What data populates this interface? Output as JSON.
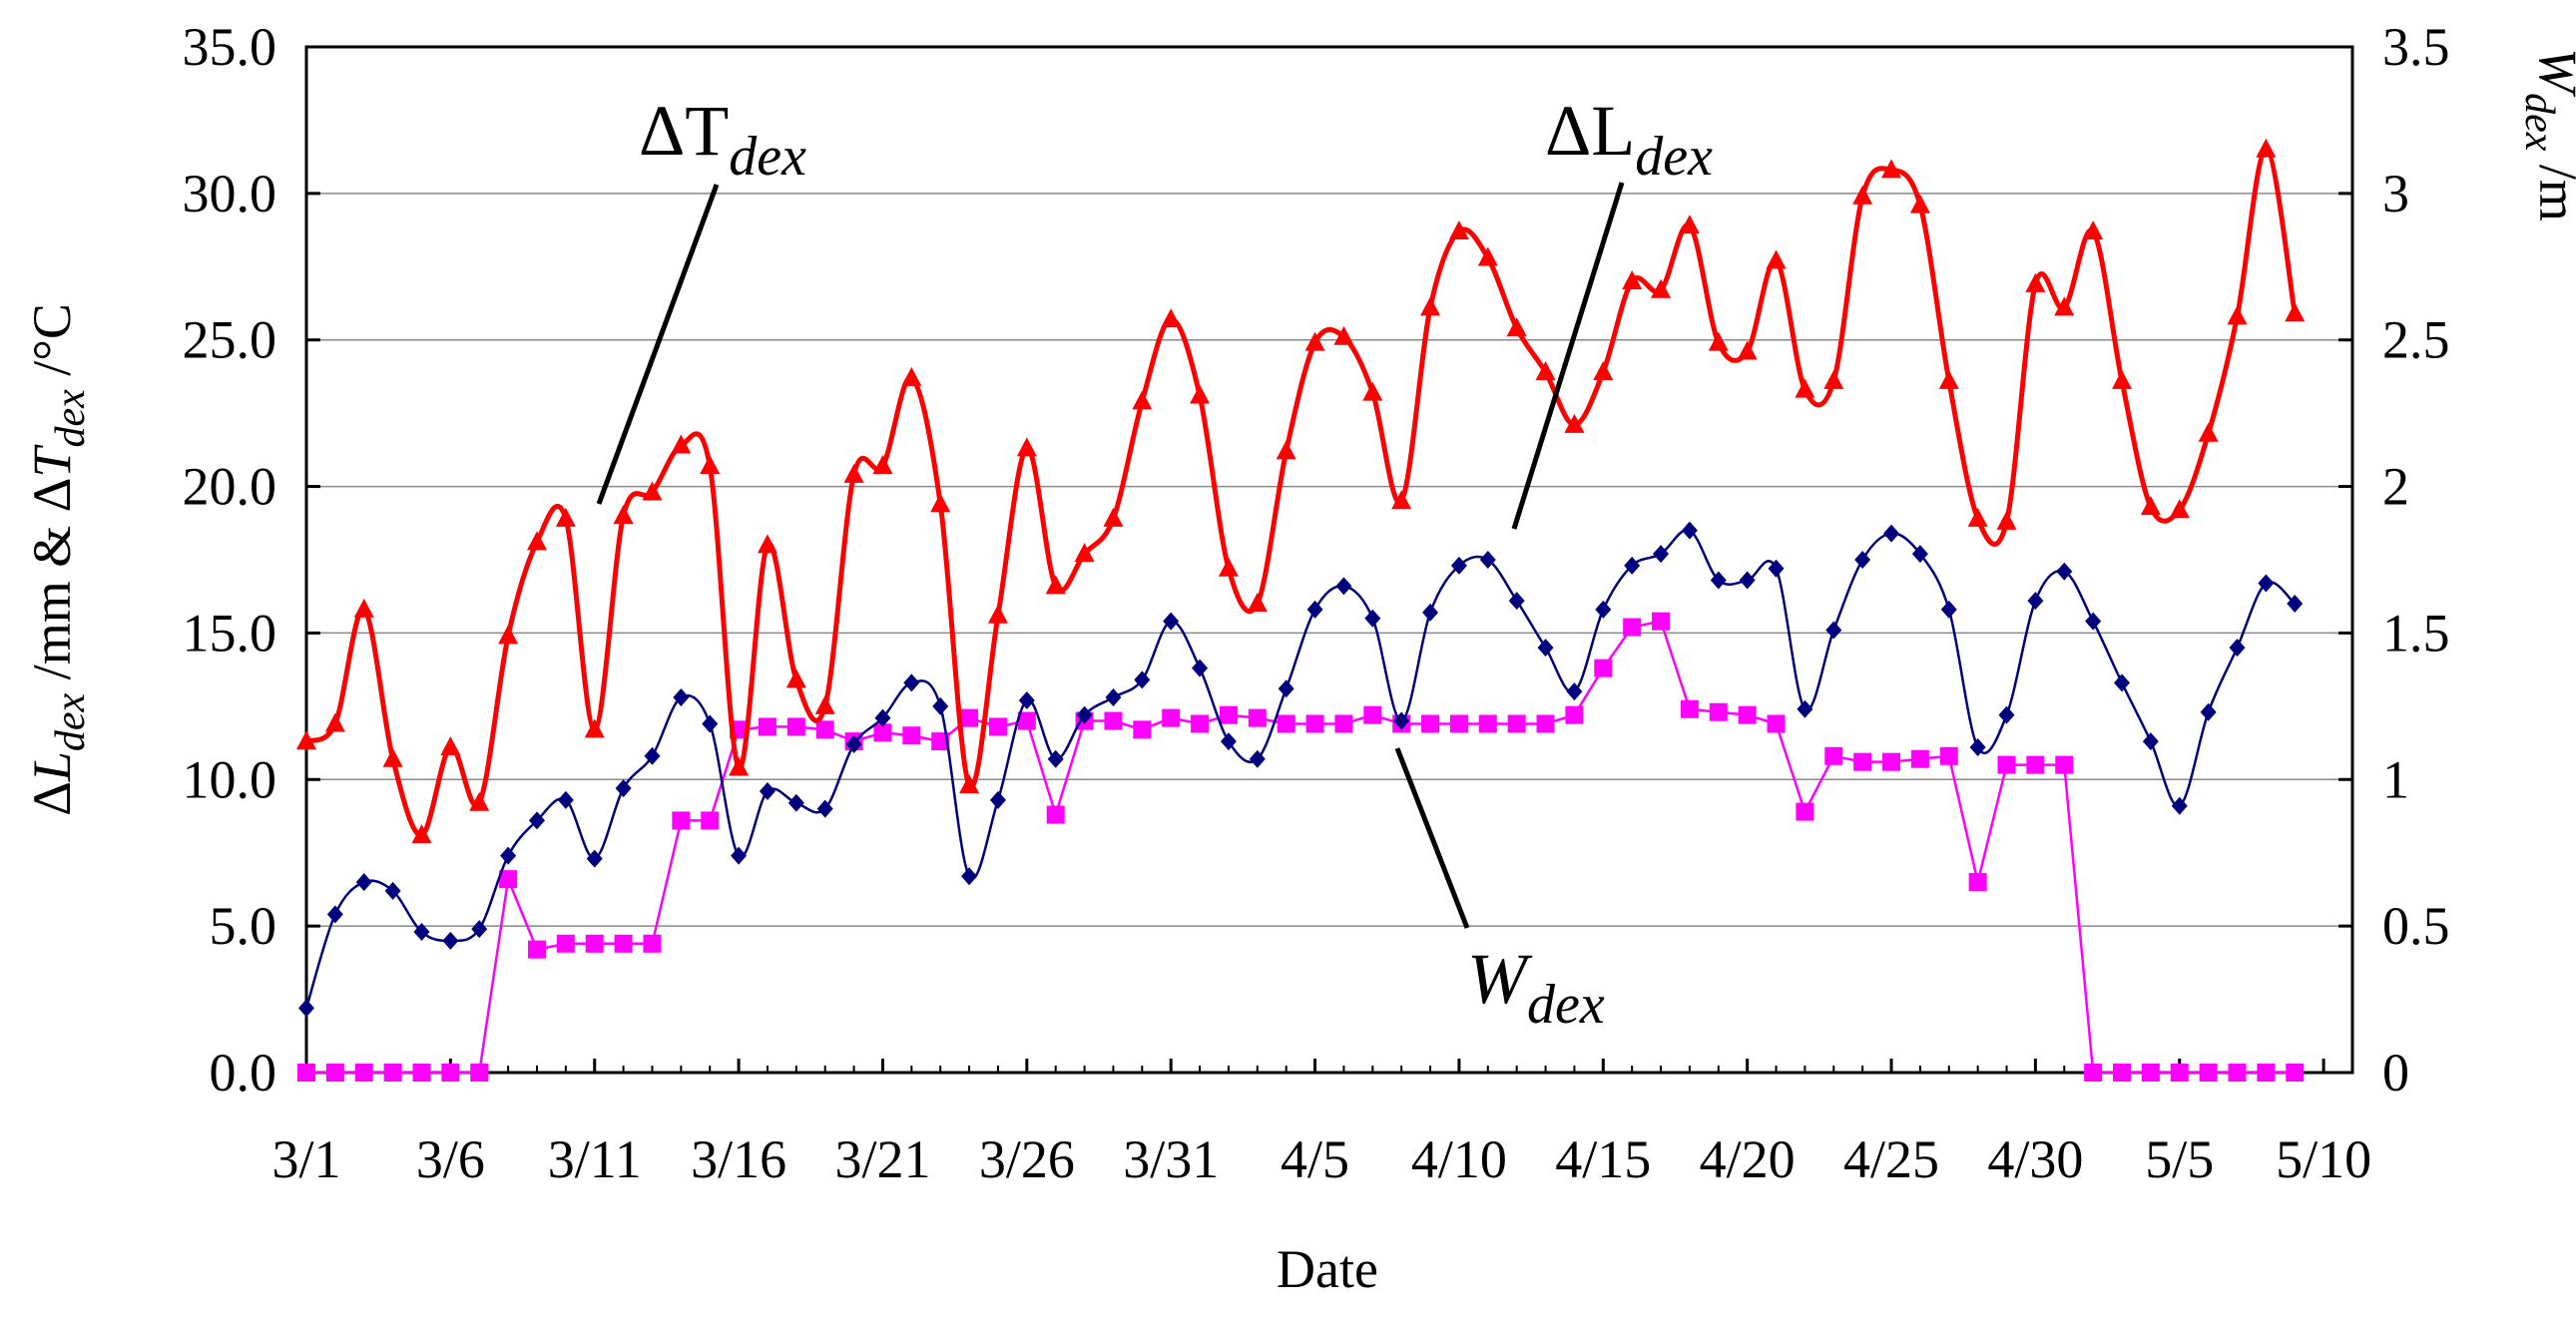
{
  "chart_data": {
    "type": "line",
    "xlabel": "Date",
    "ylabel_left": {
      "delta": "Δ",
      "L": "L",
      "L_sub": "dex",
      "unit1": " /mm & ",
      "delta2": "Δ",
      "T": "T",
      "T_sub": "dex",
      "unit2": " /°C"
    },
    "ylabel_right": {
      "W": "W",
      "W_sub": "dex",
      "unit": " /m"
    },
    "ylim_left": [
      0,
      35
    ],
    "ylim_right": [
      0,
      3.5
    ],
    "xlim": [
      1,
      72
    ],
    "y_ticks_left": [
      "0.0",
      "5.0",
      "10.0",
      "15.0",
      "20.0",
      "25.0",
      "30.0",
      "35.0"
    ],
    "y_ticks_right": [
      "0",
      "0.5",
      "1",
      "1.5",
      "2",
      "2.5",
      "3",
      "3.5"
    ],
    "x_ticks": [
      {
        "day": 1,
        "label": "3/1"
      },
      {
        "day": 6,
        "label": "3/6"
      },
      {
        "day": 11,
        "label": "3/11"
      },
      {
        "day": 16,
        "label": "3/16"
      },
      {
        "day": 21,
        "label": "3/21"
      },
      {
        "day": 26,
        "label": "3/26"
      },
      {
        "day": 31,
        "label": "3/31"
      },
      {
        "day": 36,
        "label": "4/5"
      },
      {
        "day": 41,
        "label": "4/10"
      },
      {
        "day": 46,
        "label": "4/15"
      },
      {
        "day": 51,
        "label": "4/20"
      },
      {
        "day": 56,
        "label": "4/25"
      },
      {
        "day": 61,
        "label": "4/30"
      },
      {
        "day": 66,
        "label": "5/5"
      },
      {
        "day": 71,
        "label": "5/10"
      }
    ],
    "annotations": [
      {
        "base": "ΔT",
        "sub": "dex",
        "series": "delta_T"
      },
      {
        "base": "ΔL",
        "sub": "dex",
        "series": "delta_L"
      },
      {
        "base": "W",
        "sub": "dex",
        "series": "W"
      }
    ],
    "series": [
      {
        "name": "ΔT_dex",
        "axis": "left",
        "color": "#ff0000",
        "marker": "triangle",
        "values": [
          11.3,
          11.9,
          15.8,
          10.7,
          8.1,
          11.1,
          9.2,
          14.9,
          18.1,
          18.9,
          11.7,
          19.0,
          19.8,
          21.4,
          20.7,
          10.4,
          18.0,
          13.4,
          12.5,
          20.4,
          20.7,
          23.7,
          19.4,
          9.8,
          15.6,
          21.3,
          16.6,
          17.7,
          18.9,
          22.9,
          25.7,
          23.1,
          17.2,
          16.0,
          21.2,
          24.9,
          25.1,
          23.2,
          19.5,
          26.1,
          28.7,
          27.8,
          25.4,
          23.9,
          22.1,
          23.9,
          27.0,
          26.7,
          28.9,
          24.9,
          24.6,
          27.7,
          23.3,
          23.6,
          29.9,
          30.8,
          29.6,
          23.6,
          18.9,
          18.8,
          26.9,
          26.1,
          28.7,
          23.6,
          19.3,
          19.2,
          21.8,
          25.8,
          31.5,
          25.9
        ]
      },
      {
        "name": "ΔL_dex",
        "axis": "left",
        "color": "#00007f",
        "marker": "diamond",
        "values": [
          2.2,
          5.4,
          6.5,
          6.2,
          4.8,
          4.5,
          4.9,
          7.4,
          8.6,
          9.3,
          7.3,
          9.7,
          10.8,
          12.8,
          11.9,
          7.4,
          9.6,
          9.2,
          9.0,
          11.2,
          12.1,
          13.3,
          12.5,
          6.7,
          9.3,
          12.7,
          10.7,
          12.2,
          12.8,
          13.4,
          15.4,
          13.8,
          11.3,
          10.7,
          13.1,
          15.8,
          16.6,
          15.5,
          12.0,
          15.7,
          17.3,
          17.5,
          16.1,
          14.5,
          13.0,
          15.8,
          17.3,
          17.7,
          18.5,
          16.8,
          16.8,
          17.2,
          12.4,
          15.1,
          17.5,
          18.4,
          17.7,
          15.8,
          11.1,
          12.2,
          16.1,
          17.1,
          15.4,
          13.3,
          11.3,
          9.1,
          12.3,
          14.5,
          16.7,
          16.0
        ]
      },
      {
        "name": "W_dex",
        "axis": "right",
        "color": "#ff00ff",
        "marker": "square",
        "values": [
          0,
          0,
          0,
          0,
          0,
          0,
          0,
          0.66,
          0.42,
          0.44,
          0.44,
          0.44,
          0.44,
          0.86,
          0.86,
          1.17,
          1.18,
          1.18,
          1.17,
          1.13,
          1.16,
          1.15,
          1.13,
          1.21,
          1.18,
          1.2,
          0.88,
          1.2,
          1.2,
          1.17,
          1.21,
          1.19,
          1.22,
          1.21,
          1.19,
          1.19,
          1.19,
          1.22,
          1.19,
          1.19,
          1.19,
          1.19,
          1.19,
          1.19,
          1.22,
          1.38,
          1.52,
          1.54,
          1.24,
          1.23,
          1.22,
          1.19,
          0.89,
          1.08,
          1.06,
          1.06,
          1.07,
          1.08,
          0.65,
          1.05,
          1.05,
          1.05,
          0,
          0,
          0,
          0,
          0,
          0,
          0,
          0
        ]
      }
    ]
  }
}
